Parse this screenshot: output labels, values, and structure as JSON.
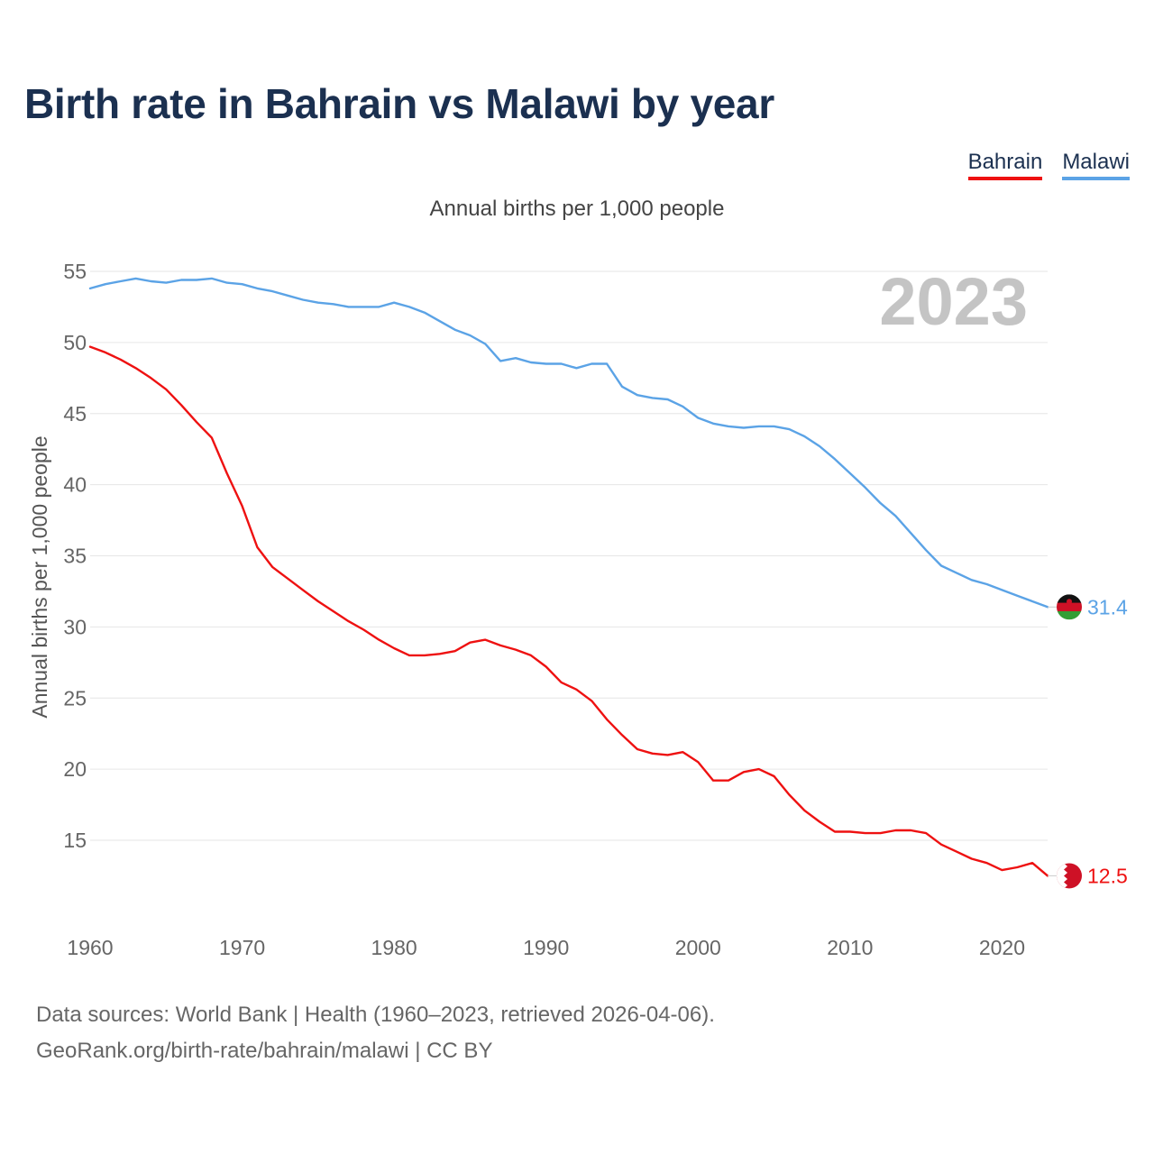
{
  "title": "Birth rate in Bahrain vs Malawi by year",
  "legend": [
    {
      "label": "Bahrain",
      "color": "#ee1111"
    },
    {
      "label": "Malawi",
      "color": "#5ba3e6"
    }
  ],
  "chart_data": {
    "type": "line",
    "title": "Birth rate in Bahrain vs Malawi by year",
    "subtitle": "Annual births per 1,000 people",
    "xlabel": "",
    "ylabel": "Annual births per 1,000 people",
    "xlim": [
      1960,
      2023
    ],
    "ylim": [
      10,
      56
    ],
    "x_ticks": [
      1960,
      1970,
      1980,
      1990,
      2000,
      2010,
      2020
    ],
    "y_ticks": [
      15,
      20,
      25,
      30,
      35,
      40,
      45,
      50,
      55
    ],
    "grid": true,
    "legend_position": "top-right",
    "year_overlay": "2023",
    "x": [
      1960,
      1961,
      1962,
      1963,
      1964,
      1965,
      1966,
      1967,
      1968,
      1969,
      1970,
      1971,
      1972,
      1973,
      1974,
      1975,
      1976,
      1977,
      1978,
      1979,
      1980,
      1981,
      1982,
      1983,
      1984,
      1985,
      1986,
      1987,
      1988,
      1989,
      1990,
      1991,
      1992,
      1993,
      1994,
      1995,
      1996,
      1997,
      1998,
      1999,
      2000,
      2001,
      2002,
      2003,
      2004,
      2005,
      2006,
      2007,
      2008,
      2009,
      2010,
      2011,
      2012,
      2013,
      2014,
      2015,
      2016,
      2017,
      2018,
      2019,
      2020,
      2021,
      2022,
      2023
    ],
    "series": [
      {
        "name": "Bahrain",
        "color": "#ee1111",
        "end_label": "12.5",
        "values": [
          49.7,
          49.3,
          48.8,
          48.2,
          47.5,
          46.7,
          45.6,
          44.4,
          43.3,
          40.8,
          38.5,
          35.6,
          34.2,
          33.4,
          32.6,
          31.8,
          31.1,
          30.4,
          29.8,
          29.1,
          28.5,
          28.0,
          28.0,
          28.1,
          28.3,
          28.9,
          29.1,
          28.7,
          28.4,
          28.0,
          27.2,
          26.1,
          25.6,
          24.8,
          23.5,
          22.4,
          21.4,
          21.1,
          21.0,
          21.2,
          20.5,
          19.2,
          19.2,
          19.8,
          20.0,
          19.5,
          18.2,
          17.1,
          16.3,
          15.6,
          15.6,
          15.5,
          15.5,
          15.7,
          15.7,
          15.5,
          14.7,
          14.2,
          13.7,
          13.4,
          12.9,
          13.1,
          13.4,
          12.5
        ]
      },
      {
        "name": "Malawi",
        "color": "#5ba3e6",
        "end_label": "31.4",
        "values": [
          53.8,
          54.1,
          54.3,
          54.5,
          54.3,
          54.2,
          54.4,
          54.4,
          54.5,
          54.2,
          54.1,
          53.8,
          53.6,
          53.3,
          53.0,
          52.8,
          52.7,
          52.5,
          52.5,
          52.5,
          52.8,
          52.5,
          52.1,
          51.5,
          50.9,
          50.5,
          49.9,
          48.7,
          48.9,
          48.6,
          48.5,
          48.5,
          48.2,
          48.5,
          48.5,
          46.9,
          46.3,
          46.1,
          46.0,
          45.5,
          44.7,
          44.3,
          44.1,
          44.0,
          44.1,
          44.1,
          43.9,
          43.4,
          42.7,
          41.8,
          40.8,
          39.8,
          38.7,
          37.8,
          36.6,
          35.4,
          34.3,
          33.8,
          33.3,
          33.0,
          32.6,
          32.2,
          31.8,
          31.4
        ]
      }
    ]
  },
  "footer": {
    "line1": "Data sources: World Bank | Health (1960–2023, retrieved 2026-04-06).",
    "line2": "GeoRank.org/birth-rate/bahrain/malawi | CC BY"
  }
}
